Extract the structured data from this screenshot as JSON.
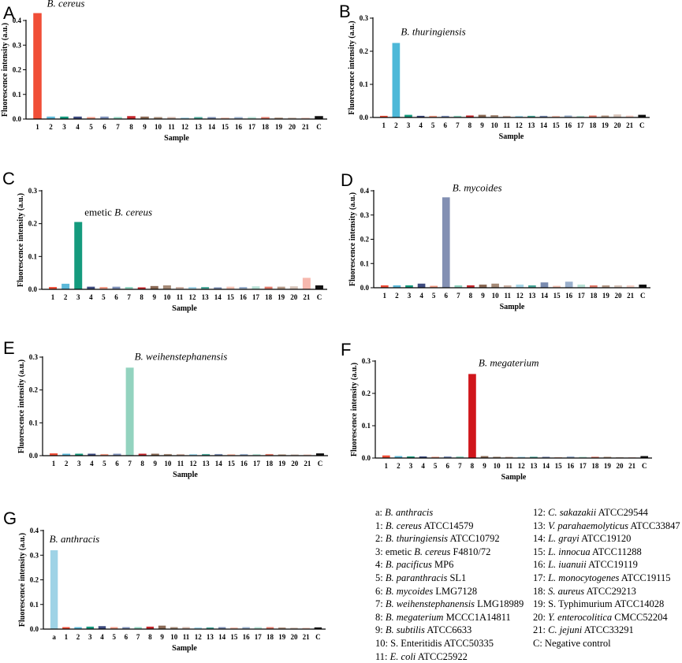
{
  "figure": {
    "ylabel": "Fluorescence intensity (a.u.)",
    "xlabel": "Sample"
  },
  "chart_data": [
    {
      "panel": "A",
      "type": "bar",
      "annotation": {
        "italic": "B. cereus",
        "plain": ""
      },
      "ylim": [
        0,
        0.4
      ],
      "yticks": [
        "0.0",
        "0.1",
        "0.2",
        "0.3",
        "0.4"
      ],
      "categories": [
        "1",
        "2",
        "3",
        "4",
        "5",
        "6",
        "7",
        "8",
        "9",
        "10",
        "11",
        "12",
        "13",
        "14",
        "15",
        "16",
        "17",
        "18",
        "19",
        "20",
        "21",
        "C"
      ],
      "values": [
        0.43,
        0.01,
        0.01,
        0.01,
        0.008,
        0.01,
        0.008,
        0.012,
        0.01,
        0.008,
        0.008,
        0.006,
        0.008,
        0.008,
        0.006,
        0.008,
        0.008,
        0.008,
        0.006,
        0.006,
        0.006,
        0.012
      ],
      "colors": [
        "#f04e37",
        "#5cb9d9",
        "#159a7e",
        "#3d4b7f",
        "#f19a85",
        "#7e90b8",
        "#8fd3c0",
        "#c5262b",
        "#8b6a55",
        "#a58a77",
        "#cdb2a5",
        "#a6d6e8",
        "#4aa89a",
        "#7a8cb0",
        "#f3c0b2",
        "#9ab0cc",
        "#b7e1d5",
        "#e07a6a",
        "#b69a88",
        "#d6c3b8",
        "#f5d0c6",
        "#111111"
      ]
    },
    {
      "panel": "B",
      "type": "bar",
      "annotation": {
        "italic": "B. thuringiensis",
        "plain": ""
      },
      "ylim": [
        0,
        0.3
      ],
      "yticks": [
        "0.0",
        "0.1",
        "0.2",
        "0.3"
      ],
      "categories": [
        "1",
        "2",
        "3",
        "4",
        "5",
        "6",
        "7",
        "8",
        "9",
        "10",
        "11",
        "12",
        "13",
        "14",
        "15",
        "16",
        "17",
        "18",
        "19",
        "20",
        "21",
        "C"
      ],
      "values": [
        0.005,
        0.225,
        0.008,
        0.005,
        0.005,
        0.005,
        0.005,
        0.006,
        0.008,
        0.007,
        0.005,
        0.005,
        0.005,
        0.005,
        0.005,
        0.006,
        0.005,
        0.006,
        0.006,
        0.009,
        0.006,
        0.008
      ],
      "colors": [
        "#f04e37",
        "#4db8d8",
        "#159a7e",
        "#3d4b7f",
        "#f19a85",
        "#7e90b8",
        "#8fd3c0",
        "#c5262b",
        "#8b6a55",
        "#a58a77",
        "#cdb2a5",
        "#a6d6e8",
        "#4aa89a",
        "#7a8cb0",
        "#f3c0b2",
        "#9ab0cc",
        "#b7e1d5",
        "#e07a6a",
        "#b69a88",
        "#d6c3b8",
        "#f5d0c6",
        "#111111"
      ]
    },
    {
      "panel": "C",
      "type": "bar",
      "annotation": {
        "italic": "B. cereus",
        "plain": "emetic "
      },
      "ylim": [
        0,
        0.3
      ],
      "yticks": [
        "0.0",
        "0.1",
        "0.2",
        "0.3"
      ],
      "categories": [
        "1",
        "2",
        "3",
        "4",
        "5",
        "6",
        "7",
        "8",
        "9",
        "10",
        "11",
        "12",
        "13",
        "14",
        "15",
        "16",
        "17",
        "18",
        "19",
        "20",
        "21",
        "C"
      ],
      "values": [
        0.007,
        0.017,
        0.205,
        0.008,
        0.007,
        0.008,
        0.007,
        0.006,
        0.01,
        0.012,
        0.007,
        0.007,
        0.007,
        0.006,
        0.008,
        0.007,
        0.009,
        0.008,
        0.008,
        0.009,
        0.035,
        0.012
      ],
      "colors": [
        "#f04e37",
        "#5cb9d9",
        "#149a7d",
        "#3d4b7f",
        "#f19a85",
        "#7e90b8",
        "#8fd3c0",
        "#c5262b",
        "#8b6a55",
        "#a58a77",
        "#cdb2a5",
        "#a6d6e8",
        "#4aa89a",
        "#7a8cb0",
        "#f3c0b2",
        "#9ab0cc",
        "#b7e1d5",
        "#e07a6a",
        "#b69a88",
        "#d6c3b8",
        "#f6b8ae",
        "#111111"
      ]
    },
    {
      "panel": "D",
      "type": "bar",
      "annotation": {
        "italic": "B. mycoides",
        "plain": ""
      },
      "ylim": [
        0,
        0.4
      ],
      "yticks": [
        "0.0",
        "0.1",
        "0.2",
        "0.3",
        "0.4"
      ],
      "categories": [
        "1",
        "2",
        "3",
        "4",
        "5",
        "6",
        "7",
        "8",
        "9",
        "10",
        "11",
        "12",
        "13",
        "14",
        "15",
        "16",
        "17",
        "18",
        "19",
        "20",
        "21",
        "C"
      ],
      "values": [
        0.01,
        0.01,
        0.01,
        0.017,
        0.008,
        0.373,
        0.01,
        0.01,
        0.013,
        0.017,
        0.01,
        0.013,
        0.01,
        0.022,
        0.008,
        0.025,
        0.013,
        0.01,
        0.01,
        0.01,
        0.01,
        0.013
      ],
      "colors": [
        "#f04e37",
        "#5cb9d9",
        "#159a7e",
        "#3d4b7f",
        "#f19a85",
        "#8390b3",
        "#8fd3c0",
        "#c5262b",
        "#8b6a55",
        "#a58a77",
        "#cdb2a5",
        "#a6d6e8",
        "#4aa89a",
        "#7a8cb0",
        "#f3c0b2",
        "#9ab0cc",
        "#b7e1d5",
        "#e07a6a",
        "#b69a88",
        "#d6c3b8",
        "#f5d0c6",
        "#111111"
      ]
    },
    {
      "panel": "E",
      "type": "bar",
      "annotation": {
        "italic": "B. weihenstephanensis",
        "plain": ""
      },
      "ylim": [
        0,
        0.3
      ],
      "yticks": [
        "0.0",
        "0.1",
        "0.2",
        "0.3"
      ],
      "categories": [
        "1",
        "2",
        "3",
        "4",
        "5",
        "6",
        "7",
        "8",
        "9",
        "10",
        "11",
        "12",
        "13",
        "14",
        "15",
        "16",
        "17",
        "18",
        "19",
        "20",
        "21",
        "C"
      ],
      "values": [
        0.007,
        0.006,
        0.006,
        0.006,
        0.005,
        0.006,
        0.268,
        0.006,
        0.006,
        0.005,
        0.005,
        0.005,
        0.005,
        0.005,
        0.005,
        0.005,
        0.005,
        0.005,
        0.004,
        0.004,
        0.004,
        0.007
      ],
      "colors": [
        "#f04e37",
        "#5cb9d9",
        "#159a7e",
        "#3d4b7f",
        "#f19a85",
        "#7e90b8",
        "#93d3bf",
        "#c5262b",
        "#8b6a55",
        "#a58a77",
        "#cdb2a5",
        "#a6d6e8",
        "#4aa89a",
        "#7a8cb0",
        "#f3c0b2",
        "#9ab0cc",
        "#b7e1d5",
        "#e07a6a",
        "#b69a88",
        "#d6c3b8",
        "#f5d0c6",
        "#111111"
      ]
    },
    {
      "panel": "F",
      "type": "bar",
      "annotation": {
        "italic": "B. megaterium",
        "plain": ""
      },
      "ylim": [
        0,
        0.3
      ],
      "yticks": [
        "0.0",
        "0.1",
        "0.2",
        "0.3"
      ],
      "categories": [
        "1",
        "2",
        "3",
        "4",
        "5",
        "6",
        "7",
        "8",
        "9",
        "10",
        "11",
        "12",
        "13",
        "14",
        "15",
        "16",
        "17",
        "18",
        "19",
        "20",
        "21",
        "C"
      ],
      "values": [
        0.008,
        0.006,
        0.005,
        0.005,
        0.004,
        0.005,
        0.005,
        0.26,
        0.006,
        0.004,
        0.004,
        0.004,
        0.004,
        0.004,
        0.003,
        0.005,
        0.004,
        0.004,
        0.004,
        0.003,
        0.003,
        0.006
      ],
      "colors": [
        "#f04e37",
        "#5cb9d9",
        "#159a7e",
        "#3d4b7f",
        "#f19a85",
        "#7e90b8",
        "#8fd3c0",
        "#d0151b",
        "#8b6a55",
        "#a58a77",
        "#cdb2a5",
        "#a6d6e8",
        "#4aa89a",
        "#7a8cb0",
        "#f3c0b2",
        "#9ab0cc",
        "#b7e1d5",
        "#e07a6a",
        "#b69a88",
        "#d6c3b8",
        "#f5d0c6",
        "#111111"
      ]
    },
    {
      "panel": "G",
      "type": "bar",
      "annotation": {
        "italic": "B. anthracis",
        "plain": ""
      },
      "ylim": [
        0,
        0.4
      ],
      "yticks": [
        "0.0",
        "0.1",
        "0.2",
        "0.3",
        "0.4"
      ],
      "categories": [
        "a",
        "1",
        "2",
        "3",
        "4",
        "5",
        "6",
        "7",
        "8",
        "9",
        "10",
        "11",
        "12",
        "13",
        "14",
        "15",
        "16",
        "17",
        "18",
        "19",
        "20",
        "21",
        "C"
      ],
      "values": [
        0.32,
        0.008,
        0.008,
        0.01,
        0.012,
        0.008,
        0.008,
        0.008,
        0.01,
        0.014,
        0.008,
        0.008,
        0.007,
        0.007,
        0.008,
        0.007,
        0.008,
        0.008,
        0.008,
        0.007,
        0.006,
        0.006,
        0.007
      ],
      "colors": [
        "#9fd3e6",
        "#f04e37",
        "#5cb9d9",
        "#159a7e",
        "#3d4b7f",
        "#f19a85",
        "#7e90b8",
        "#8fd3c0",
        "#c5262b",
        "#8b6a55",
        "#a58a77",
        "#cdb2a5",
        "#a6d6e8",
        "#4aa89a",
        "#7a8cb0",
        "#f3c0b2",
        "#9ab0cc",
        "#b7e1d5",
        "#e07a6a",
        "#b69a88",
        "#d6c3b8",
        "#f5d0c6",
        "#111111"
      ]
    }
  ],
  "legend": {
    "col1": [
      {
        "prefix": "a: ",
        "italic": "B. anthracis",
        "suffix": ""
      },
      {
        "prefix": "1: ",
        "italic": "B. cereus",
        "suffix": " ATCC14579"
      },
      {
        "prefix": "2: ",
        "italic": "B. thuringiensis",
        "suffix": " ATCC10792"
      },
      {
        "prefix": "3: emetic ",
        "italic": "B. cereus",
        "suffix": " F4810/72"
      },
      {
        "prefix": "4: ",
        "italic": "B. pacificus",
        "suffix": " MP6"
      },
      {
        "prefix": "5: ",
        "italic": "B. paranthracis",
        "suffix": " SL1"
      },
      {
        "prefix": "6: ",
        "italic": "B. mycoides",
        "suffix": " LMG7128"
      },
      {
        "prefix": "7: ",
        "italic": "B. weihenstephanensis",
        "suffix": " LMG18989"
      },
      {
        "prefix": "8: ",
        "italic": "B. megaterium",
        "suffix": " MCCC1A14811"
      },
      {
        "prefix": "9: ",
        "italic": "B. subtilis",
        "suffix": " ATCC6633"
      },
      {
        "prefix": "10: S. Enteritidis ATCC50335",
        "italic": "",
        "suffix": ""
      },
      {
        "prefix": "11: ",
        "italic": "E. coli",
        "suffix": " ATCC25922"
      }
    ],
    "col2": [
      {
        "prefix": "12: ",
        "italic": "C. sakazakii",
        "suffix": " ATCC29544"
      },
      {
        "prefix": "13: ",
        "italic": "V. parahaemolyticus",
        "suffix": " ATCC33847"
      },
      {
        "prefix": "14: ",
        "italic": "L. grayi",
        "suffix": " ATCC19120"
      },
      {
        "prefix": "15: ",
        "italic": "L. innocua",
        "suffix": " ATCC11288"
      },
      {
        "prefix": "16: ",
        "italic": "L. iuanuii",
        "suffix": " ATCC19119"
      },
      {
        "prefix": "17: ",
        "italic": "L. monocytogenes",
        "suffix": " ATCC19115"
      },
      {
        "prefix": "18: ",
        "italic": "S. aureus",
        "suffix": " ATCC29213"
      },
      {
        "prefix": "19: S. Typhimurium ATCC14028",
        "italic": "",
        "suffix": ""
      },
      {
        "prefix": "20: ",
        "italic": "Y. enterocolitica",
        "suffix": " CMCC52204"
      },
      {
        "prefix": "21: ",
        "italic": "C. jejuni",
        "suffix": " ATCC33291"
      },
      {
        "prefix": "C:  Negative control",
        "italic": "",
        "suffix": ""
      }
    ]
  }
}
